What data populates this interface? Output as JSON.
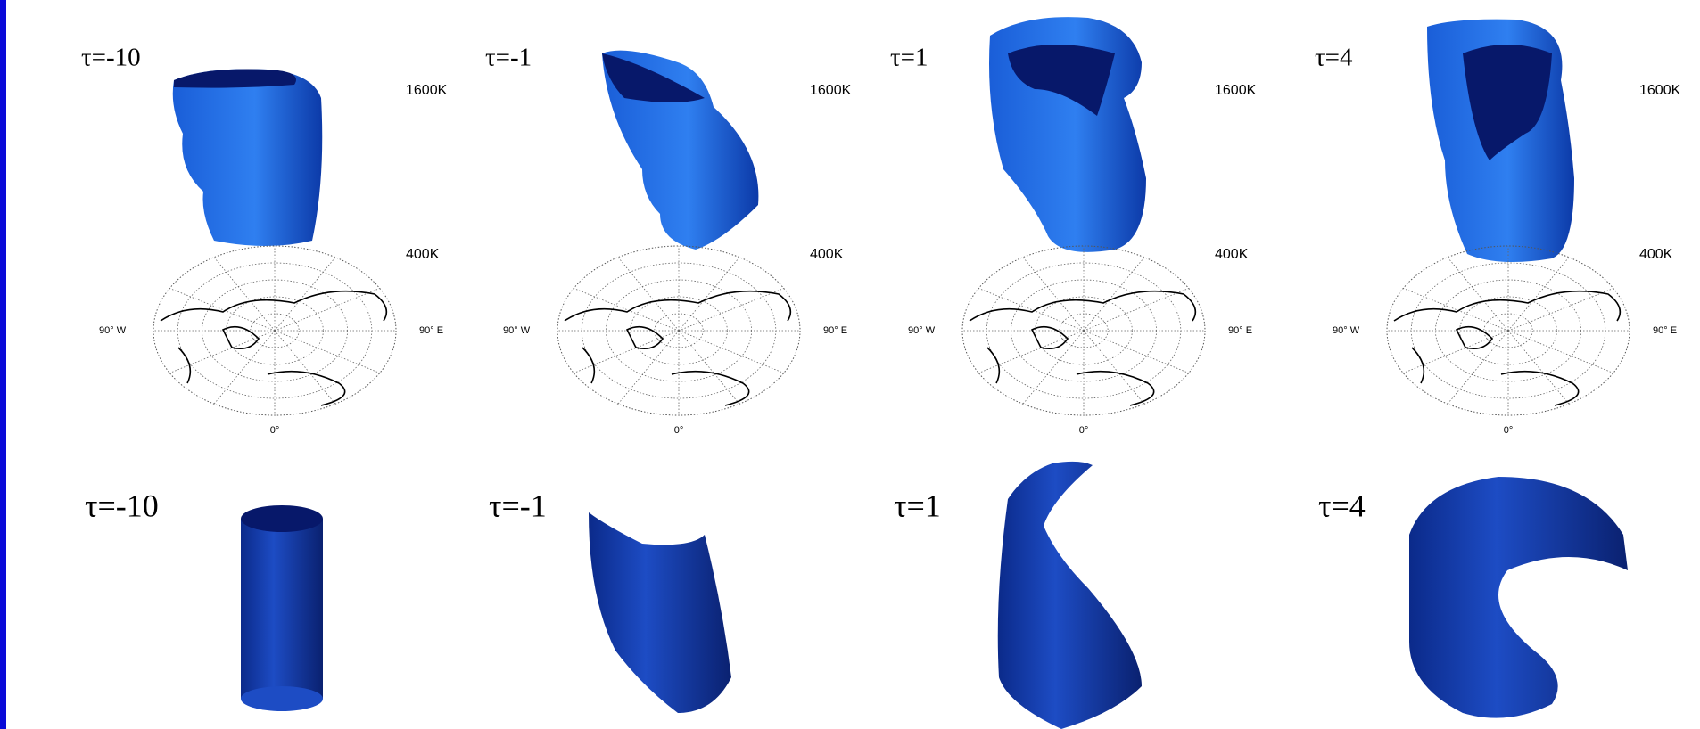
{
  "top_row": [
    {
      "label": "τ=-10",
      "upper_level": "1600K",
      "lower_level": "400K",
      "west": "90° W",
      "east": "90° E",
      "south": "0°"
    },
    {
      "label": "τ=-1",
      "upper_level": "1600K",
      "lower_level": "400K",
      "west": "90° W",
      "east": "90° E",
      "south": "0°"
    },
    {
      "label": "τ=1",
      "upper_level": "1600K",
      "lower_level": "400K",
      "west": "90° W",
      "east": "90° E",
      "south": "0°"
    },
    {
      "label": "τ=4",
      "upper_level": "1600K",
      "lower_level": "400K",
      "west": "90° W",
      "east": "90° E",
      "south": "0°"
    }
  ],
  "bottom_row": [
    {
      "label": "τ=-10"
    },
    {
      "label": "τ=-1"
    },
    {
      "label": "τ=1"
    },
    {
      "label": "τ=4"
    }
  ]
}
